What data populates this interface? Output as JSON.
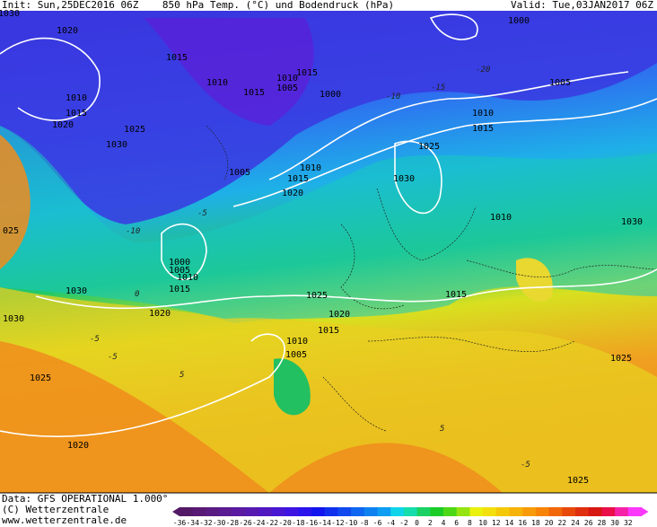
{
  "header": {
    "init": "Init: Sun,25DEC2016 06Z",
    "title": "850 hPa Temp. (°C) und Bodendruck (hPa)",
    "valid": "Valid: Tue,03JAN2017 06Z"
  },
  "footer": {
    "data_source": "Data: GFS OPERATIONAL 1.000°",
    "copyright": "(C) Wetterzentrale",
    "website": "www.wetterzentrale.de"
  },
  "scale": [
    -36,
    -34,
    -32,
    -30,
    -28,
    -26,
    -24,
    -22,
    -20,
    -18,
    -16,
    -14,
    -12,
    -10,
    -8,
    -6,
    -4,
    -2,
    0,
    2,
    4,
    6,
    8,
    10,
    12,
    14,
    16,
    18,
    20,
    22,
    24,
    26,
    28,
    30,
    32
  ],
  "isobar_labels": [
    "1030",
    "1020",
    "1015",
    "1010",
    "1010",
    "1015",
    "1020",
    "1025",
    "1030",
    "1010",
    "1005",
    "1015",
    "1015",
    "1000",
    "1000",
    "1005",
    "1010",
    "1015",
    "1025",
    "1005",
    "1010",
    "1015",
    "1020",
    "1030",
    "1010",
    "1030",
    "025",
    "1000",
    "1005",
    "1010",
    "1015",
    "1030",
    "1020",
    "1025",
    "1020",
    "1015",
    "1015",
    "1030",
    "1010",
    "1005",
    "1025",
    "1025",
    "1020",
    "1025"
  ],
  "temp_labels": [
    "-10",
    "-15",
    "-20",
    "-5",
    "-10",
    "-5",
    "0",
    "5",
    "-5",
    "5",
    "-5"
  ]
}
